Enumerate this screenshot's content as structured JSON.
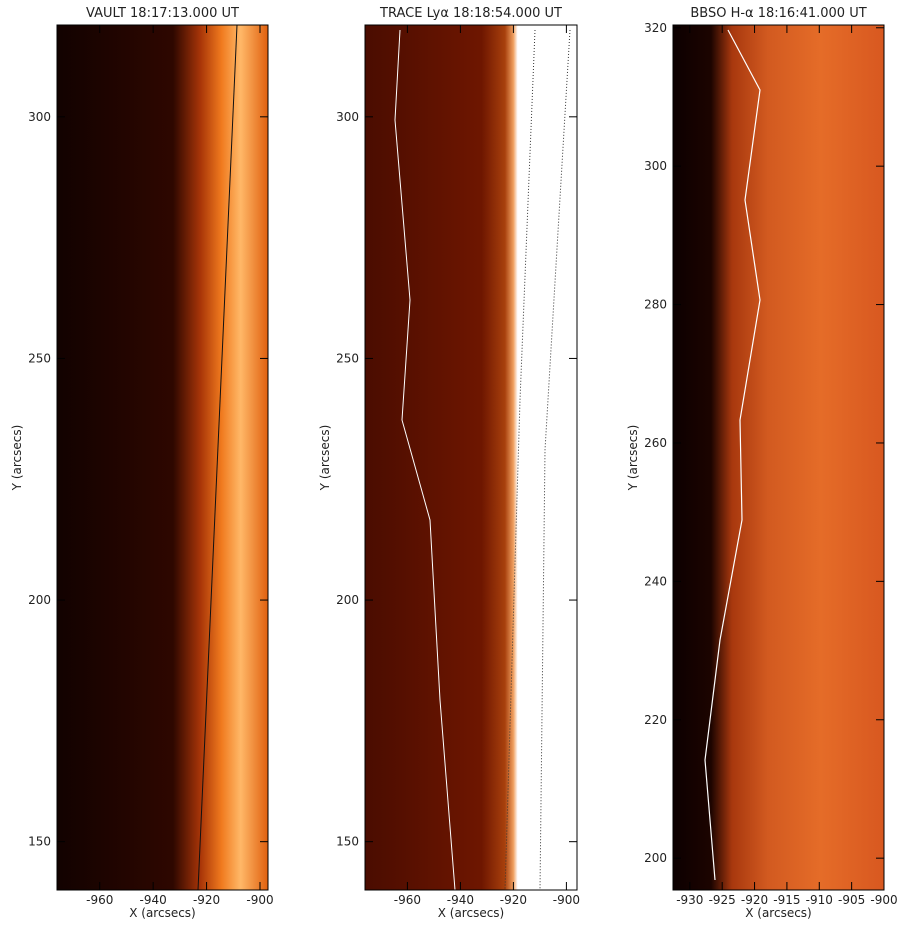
{
  "chart_data": [
    {
      "type": "image",
      "title": "VAULT 18:17:13.000 UT",
      "xlabel": "X (arcsecs)",
      "ylabel": "Y (arcsecs)",
      "xlim": [
        -976,
        -897
      ],
      "ylim": [
        140,
        319
      ],
      "xticks": [
        -960,
        -940,
        -920,
        -900
      ],
      "yticks": [
        150,
        200,
        250,
        300
      ]
    },
    {
      "type": "image",
      "title": "TRACE Lyα 18:18:54.000 UT",
      "xlabel": "X (arcsecs)",
      "ylabel": "Y (arcsecs)",
      "xlim": [
        -976,
        -896
      ],
      "ylim": [
        140,
        319
      ],
      "xticks": [
        -960,
        -940,
        -920,
        -900
      ],
      "yticks": [
        150,
        200,
        250,
        300
      ]
    },
    {
      "type": "image",
      "title": "BBSO H-α 18:16:41.000 UT",
      "xlabel": "X (arcsecs)",
      "ylabel": "Y (arcsecs)",
      "xlim": [
        -932.6,
        -900
      ],
      "ylim": [
        195.4,
        320.4
      ],
      "xticks": [
        -930,
        -925,
        -920,
        -915,
        -910,
        -905,
        -900
      ],
      "yticks": [
        200,
        220,
        240,
        260,
        280,
        300,
        320
      ]
    }
  ]
}
